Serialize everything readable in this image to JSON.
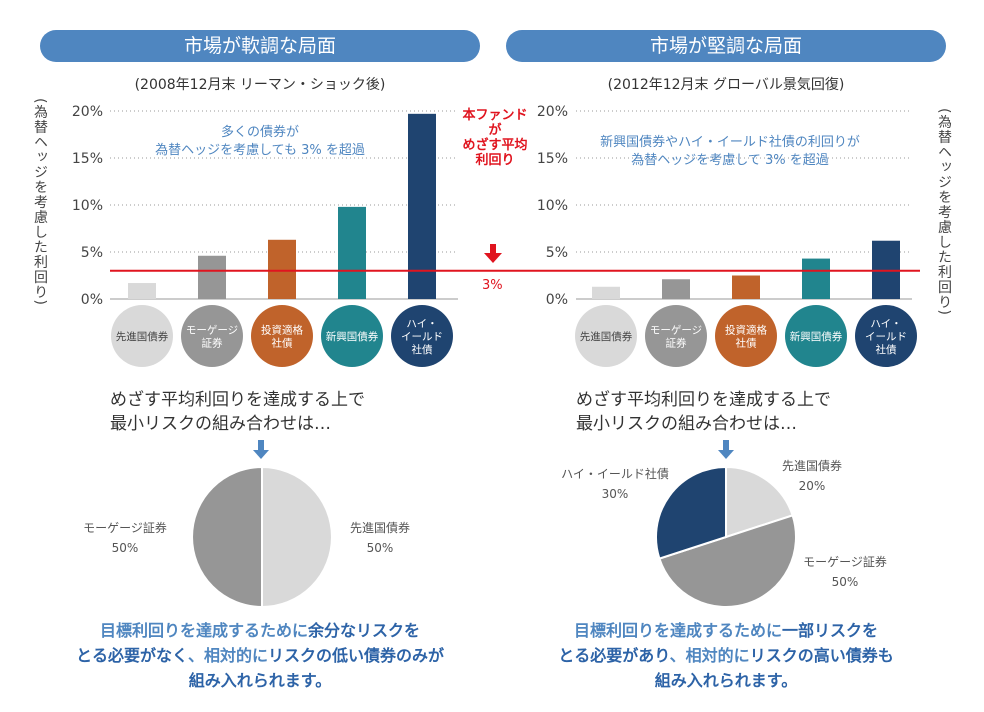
{
  "left": {
    "banner": "市場が軟調な局面",
    "subtitle": "(2008年12月末 リーマン・ショック後)",
    "annotation_line1": "多くの債券が",
    "annotation_line2": "為替ヘッジを考慮しても 3% を超過",
    "question_line1": "めざす平均利回りを達成する上で",
    "question_line2": "最小リスクの組み合わせは…",
    "conclusion_parts": {
      "l1a": "目標利回りを達成するために",
      "l1b": "余分なリスクを",
      "l2a": "とる必要がなく",
      "l2b": "、相対的に",
      "l2c": "リスクの低い債券のみが",
      "l3": "組み入れられます。"
    },
    "pie_labels": {
      "a_name": "モーゲージ証券",
      "a_pct": "50%",
      "b_name": "先進国債券",
      "b_pct": "50%"
    }
  },
  "right": {
    "banner": "市場が堅調な局面",
    "subtitle": "(2012年12月末 グローバル景気回復)",
    "annotation_line1": "新興国債券やハイ・イールド社債の利回りが",
    "annotation_line2": "為替ヘッジを考慮して 3% を超過",
    "question_line1": "めざす平均利回りを達成する上で",
    "question_line2": "最小リスクの組み合わせは…",
    "conclusion_parts": {
      "l1a": "目標利回りを達成するために",
      "l1b": "一部リスクを",
      "l2a": "とる必要があり",
      "l2b": "、相対的に",
      "l2c": "リスクの高い債券も",
      "l3": "組み入れられます。"
    },
    "pie_labels": {
      "hy_name": "ハイ・イールド社債",
      "hy_pct": "30%",
      "dev_name": "先進国債券",
      "dev_pct": "20%",
      "mbs_name": "モーゲージ証券",
      "mbs_pct": "50%"
    }
  },
  "ylabel": "(為替ヘッジを考慮した利回り)",
  "target": {
    "label_lines": [
      "本ファンドが",
      "めざす平均",
      "利回り"
    ],
    "value_label": "3%"
  },
  "colors": {
    "banner": "#4f86c0",
    "target_line": "#e0141f",
    "developed": "#d9d9d9",
    "mortgage": "#969696",
    "investment_grade": "#c0632b",
    "emerging": "#21858e",
    "high_yield": "#1f4470"
  },
  "chart_data": [
    {
      "type": "bar",
      "categories": [
        "先進国債券",
        "モーゲージ証券",
        "投資適格社債",
        "新興国債券",
        "ハイ・イールド社債"
      ],
      "category_badges": [
        [
          "先進国債券"
        ],
        [
          "モーゲージ",
          "証券"
        ],
        [
          "投資適格",
          "社債"
        ],
        [
          "新興国債券"
        ],
        [
          "ハイ・",
          "イールド",
          "社債"
        ]
      ],
      "values": [
        1.7,
        4.6,
        6.3,
        9.8,
        19.7
      ],
      "title": "(2008年12月末 リーマン・ショック後)",
      "ylabel": "(為替ヘッジを考慮した利回り)",
      "ylim": [
        0,
        20
      ],
      "yticks": [
        "0%",
        "5%",
        "10%",
        "15%",
        "20%"
      ],
      "reference_line": 3,
      "grid": true
    },
    {
      "type": "bar",
      "categories": [
        "先進国債券",
        "モーゲージ証券",
        "投資適格社債",
        "新興国債券",
        "ハイ・イールド社債"
      ],
      "category_badges": [
        [
          "先進国債券"
        ],
        [
          "モーゲージ",
          "証券"
        ],
        [
          "投資適格",
          "社債"
        ],
        [
          "新興国債券"
        ],
        [
          "ハイ・",
          "イールド",
          "社債"
        ]
      ],
      "values": [
        1.3,
        2.1,
        2.5,
        4.3,
        6.2
      ],
      "title": "(2012年12月末 グローバル景気回復)",
      "ylabel": "(為替ヘッジを考慮した利回り)",
      "ylim": [
        0,
        20
      ],
      "yticks": [
        "0%",
        "5%",
        "10%",
        "15%",
        "20%"
      ],
      "reference_line": 3,
      "grid": true
    },
    {
      "type": "pie",
      "labels": [
        "先進国債券",
        "モーゲージ証券"
      ],
      "values": [
        50,
        50
      ]
    },
    {
      "type": "pie",
      "labels": [
        "先進国債券",
        "モーゲージ証券",
        "ハイ・イールド社債"
      ],
      "values": [
        20,
        50,
        30
      ]
    }
  ]
}
